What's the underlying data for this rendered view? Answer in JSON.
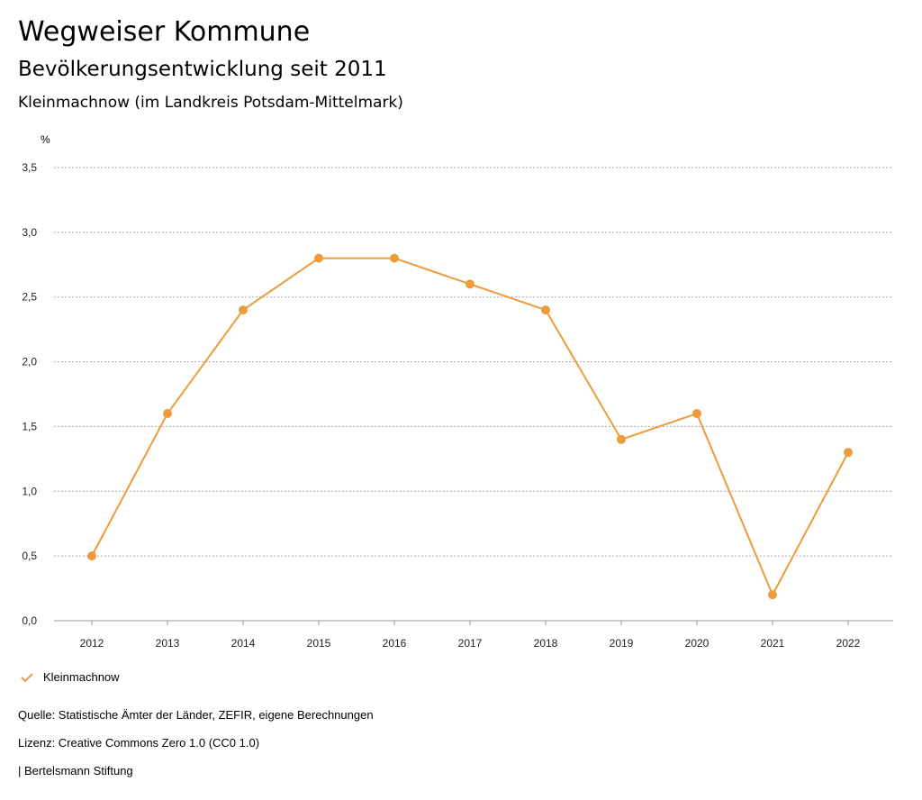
{
  "header": {
    "title": "Wegweiser Kommune",
    "subtitle": "Bevölkerungsentwicklung seit 2011",
    "region": "Kleinmachnow (im Landkreis Potsdam-Mittelmark)"
  },
  "chart_data": {
    "type": "line",
    "x": [
      "2012",
      "2013",
      "2014",
      "2015",
      "2016",
      "2017",
      "2018",
      "2019",
      "2020",
      "2021",
      "2022"
    ],
    "series": [
      {
        "name": "Kleinmachnow",
        "values": [
          0.5,
          1.6,
          2.4,
          2.8,
          2.8,
          2.6,
          2.4,
          1.4,
          1.6,
          0.2,
          1.3
        ],
        "color": "#ee9b3b"
      }
    ],
    "ylabel": "%",
    "ylim": [
      0,
      3.5
    ],
    "yticks": [
      "0,0",
      "0,5",
      "1,0",
      "1,5",
      "2,0",
      "2,5",
      "3,0",
      "3,5"
    ],
    "grid": true,
    "legend": "bottom-left"
  },
  "legend": {
    "label": "Kleinmachnow",
    "icon": "check-icon"
  },
  "footer": {
    "source": "Quelle: Statistische Ämter der Länder, ZEFIR, eigene Berechnungen",
    "license": "Lizenz: Creative Commons Zero 1.0 (CC0 1.0)",
    "brand": "| Bertelsmann Stiftung"
  }
}
